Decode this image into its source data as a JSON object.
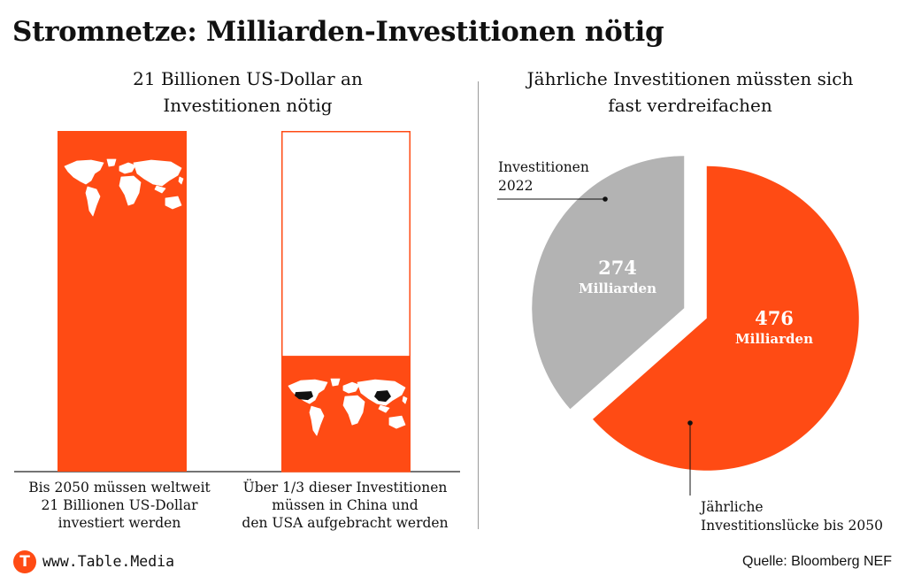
{
  "title": "Stromnetze: Milliarden-Investitionen nötig",
  "left_panel": {
    "subtitle": [
      "21 Billionen US-Dollar an",
      "Investitionen nötig"
    ],
    "captions": [
      [
        "Bis 2050 müssen weltweit",
        "21 Billionen US-Dollar",
        "investiert werden"
      ],
      [
        "Über 1/3 dieser Investitionen",
        "müssen in China und",
        "den USA aufgebracht werden"
      ]
    ]
  },
  "right_panel": {
    "subtitle": [
      "Jährliche Investitionen müssten sich",
      "fast verdreifachen"
    ],
    "annotations": {
      "gray": [
        "Investitionen",
        "2022"
      ],
      "red": [
        "Jährliche",
        "Investitionslücke bis 2050"
      ]
    }
  },
  "chart_data": [
    {
      "type": "bar",
      "categories": [
        "Bis 2050 weltweit",
        "China und USA"
      ],
      "values": [
        1.0,
        0.34
      ],
      "colors": {
        "fill": "#ff4b14",
        "outline": "#ff4b14",
        "empty": "#ffffff"
      },
      "icons": [
        "world-map-icon",
        "world-map-china-usa-highlight-icon"
      ]
    },
    {
      "type": "pie",
      "slices": [
        {
          "value": 274,
          "label": "274",
          "unit": "Milliarden",
          "color": "#b3b3b3"
        },
        {
          "value": 476,
          "label": "476",
          "unit": "Milliarden",
          "color": "#ff4b14"
        }
      ]
    }
  ],
  "footer": {
    "logo_letter": "T",
    "website": "www.Table.Media",
    "source": "Quelle: Bloomberg NEF"
  }
}
